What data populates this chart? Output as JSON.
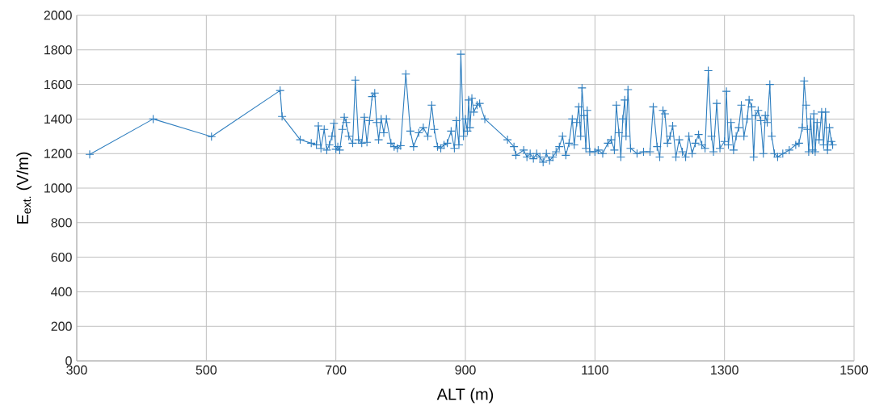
{
  "chart_data": {
    "type": "line",
    "xlabel": "ALT (m)",
    "ylabel": "E$_{ext.}$ (V/m)",
    "x": [
      320,
      418,
      508,
      614,
      617,
      645,
      662,
      670,
      673,
      677,
      682,
      686,
      690,
      694,
      697,
      700,
      703,
      706,
      710,
      713,
      716,
      720,
      726,
      730,
      735,
      740,
      744,
      748,
      752,
      756,
      760,
      763,
      766,
      770,
      774,
      778,
      785,
      790,
      795,
      800,
      808,
      815,
      820,
      828,
      835,
      842,
      848,
      852,
      857,
      862,
      867,
      872,
      878,
      883,
      886,
      890,
      893,
      897,
      900,
      903,
      905,
      907,
      910,
      913,
      918,
      922,
      930,
      965,
      975,
      978,
      990,
      995,
      1000,
      1005,
      1010,
      1015,
      1020,
      1025,
      1030,
      1035,
      1040,
      1045,
      1050,
      1055,
      1060,
      1065,
      1068,
      1072,
      1075,
      1078,
      1080,
      1083,
      1086,
      1088,
      1092,
      1100,
      1105,
      1112,
      1120,
      1125,
      1130,
      1133,
      1137,
      1140,
      1143,
      1146,
      1148,
      1151,
      1155,
      1165,
      1175,
      1185,
      1190,
      1196,
      1200,
      1205,
      1208,
      1212,
      1216,
      1220,
      1225,
      1230,
      1235,
      1240,
      1245,
      1250,
      1255,
      1260,
      1265,
      1270,
      1275,
      1280,
      1283,
      1288,
      1293,
      1300,
      1303,
      1306,
      1310,
      1314,
      1318,
      1322,
      1326,
      1330,
      1335,
      1338,
      1342,
      1345,
      1348,
      1352,
      1356,
      1360,
      1363,
      1366,
      1370,
      1373,
      1377,
      1382,
      1390,
      1400,
      1410,
      1415,
      1420,
      1423,
      1426,
      1428,
      1430,
      1433,
      1436,
      1438,
      1440,
      1443,
      1446,
      1450,
      1453,
      1456,
      1459,
      1462,
      1465,
      1467
    ],
    "series": [
      {
        "color": "#2e7ebf",
        "values": [
          1195,
          1400,
          1298,
          1565,
          1415,
          1280,
          1260,
          1250,
          1360,
          1230,
          1340,
          1220,
          1250,
          1300,
          1375,
          1225,
          1240,
          1220,
          1340,
          1410,
          1380,
          1300,
          1260,
          1625,
          1280,
          1260,
          1410,
          1265,
          1390,
          1530,
          1550,
          1380,
          1280,
          1400,
          1320,
          1400,
          1260,
          1240,
          1230,
          1245,
          1660,
          1330,
          1240,
          1320,
          1350,
          1300,
          1480,
          1340,
          1240,
          1230,
          1250,
          1260,
          1330,
          1230,
          1390,
          1250,
          1775,
          1300,
          1400,
          1330,
          1510,
          1350,
          1520,
          1440,
          1480,
          1490,
          1400,
          1280,
          1240,
          1190,
          1220,
          1180,
          1200,
          1170,
          1200,
          1180,
          1150,
          1200,
          1160,
          1180,
          1210,
          1240,
          1300,
          1190,
          1260,
          1400,
          1250,
          1380,
          1470,
          1300,
          1580,
          1420,
          1230,
          1450,
          1210,
          1210,
          1220,
          1200,
          1260,
          1280,
          1220,
          1480,
          1320,
          1180,
          1400,
          1510,
          1300,
          1570,
          1230,
          1200,
          1210,
          1210,
          1470,
          1240,
          1180,
          1450,
          1430,
          1260,
          1300,
          1360,
          1180,
          1280,
          1210,
          1180,
          1300,
          1200,
          1260,
          1310,
          1250,
          1230,
          1680,
          1300,
          1210,
          1490,
          1230,
          1270,
          1560,
          1250,
          1380,
          1220,
          1300,
          1350,
          1480,
          1300,
          1400,
          1510,
          1470,
          1180,
          1420,
          1450,
          1390,
          1200,
          1420,
          1380,
          1600,
          1300,
          1200,
          1180,
          1200,
          1220,
          1250,
          1260,
          1350,
          1620,
          1480,
          1340,
          1210,
          1400,
          1220,
          1430,
          1210,
          1380,
          1280,
          1440,
          1250,
          1440,
          1220,
          1350,
          1270,
          1250
        ]
      }
    ],
    "xlim": [
      300,
      1500
    ],
    "ylim": [
      0,
      2000
    ],
    "xticks": [
      300,
      500,
      700,
      900,
      1100,
      1300,
      1500
    ],
    "yticks": [
      0,
      200,
      400,
      600,
      800,
      1000,
      1200,
      1400,
      1600,
      1800,
      2000
    ],
    "grid": true,
    "marker": "cross",
    "line_style": "solid"
  }
}
